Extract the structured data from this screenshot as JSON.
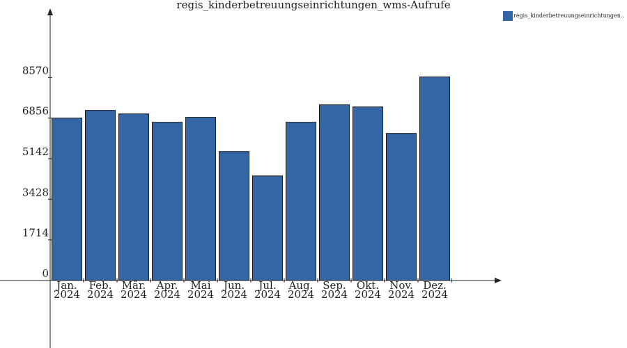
{
  "chart_data": {
    "type": "bar",
    "title": "regis_kinderbetreuungseinrichtungen_wms-Aufrufe",
    "categories": [
      [
        "Jan.",
        "2024"
      ],
      [
        "Feb.",
        "2024"
      ],
      [
        "Mär.",
        "2024"
      ],
      [
        "Apr.",
        "2024"
      ],
      [
        "Mai",
        "2024"
      ],
      [
        "Jun.",
        "2024"
      ],
      [
        "Jul.",
        "2024"
      ],
      [
        "Aug.",
        "2024"
      ],
      [
        "Sep.",
        "2024"
      ],
      [
        "Okt.",
        "2024"
      ],
      [
        "Nov.",
        "2024"
      ],
      [
        "Dez.",
        "2024"
      ]
    ],
    "series": [
      {
        "name": "regis_kinderbetreuungseinrichtungen..",
        "color": "#3465a4",
        "values": [
          6857,
          7181,
          7034,
          6681,
          6887,
          5445,
          4415,
          6681,
          7416,
          7328,
          6210,
          8594
        ]
      }
    ],
    "ylim": [
      0,
      11400
    ],
    "yticks": [
      0,
      1714,
      3428,
      5142,
      6856,
      8570
    ],
    "legend": "top-right"
  }
}
